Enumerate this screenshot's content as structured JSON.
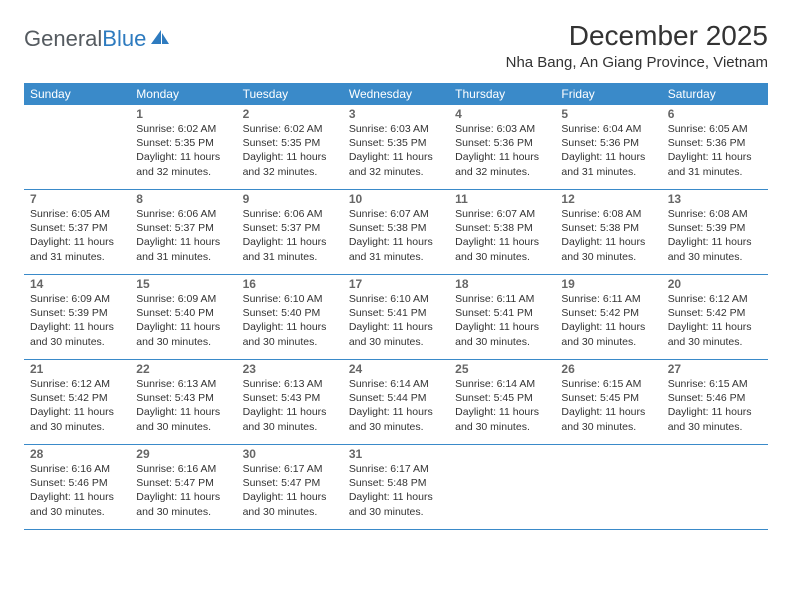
{
  "brand": {
    "part1": "General",
    "part2": "Blue"
  },
  "title": "December 2025",
  "location": "Nha Bang, An Giang Province, Vietnam",
  "colors": {
    "header_bg": "#3a8ac9",
    "header_text": "#ffffff",
    "border": "#3a8ac9",
    "daynum": "#666666",
    "body_text": "#333333",
    "brand_gray": "#555b60",
    "brand_blue": "#2e7bbf",
    "background": "#ffffff"
  },
  "typography": {
    "month_title_size": 28,
    "location_size": 15,
    "day_header_size": 12,
    "daynum_size": 12,
    "info_size": 10.5,
    "logo_size": 22
  },
  "dayHeaders": [
    "Sunday",
    "Monday",
    "Tuesday",
    "Wednesday",
    "Thursday",
    "Friday",
    "Saturday"
  ],
  "weeks": [
    [
      {
        "n": "",
        "sr": "",
        "ss": "",
        "dl": ""
      },
      {
        "n": "1",
        "sr": "Sunrise: 6:02 AM",
        "ss": "Sunset: 5:35 PM",
        "dl": "Daylight: 11 hours and 32 minutes."
      },
      {
        "n": "2",
        "sr": "Sunrise: 6:02 AM",
        "ss": "Sunset: 5:35 PM",
        "dl": "Daylight: 11 hours and 32 minutes."
      },
      {
        "n": "3",
        "sr": "Sunrise: 6:03 AM",
        "ss": "Sunset: 5:35 PM",
        "dl": "Daylight: 11 hours and 32 minutes."
      },
      {
        "n": "4",
        "sr": "Sunrise: 6:03 AM",
        "ss": "Sunset: 5:36 PM",
        "dl": "Daylight: 11 hours and 32 minutes."
      },
      {
        "n": "5",
        "sr": "Sunrise: 6:04 AM",
        "ss": "Sunset: 5:36 PM",
        "dl": "Daylight: 11 hours and 31 minutes."
      },
      {
        "n": "6",
        "sr": "Sunrise: 6:05 AM",
        "ss": "Sunset: 5:36 PM",
        "dl": "Daylight: 11 hours and 31 minutes."
      }
    ],
    [
      {
        "n": "7",
        "sr": "Sunrise: 6:05 AM",
        "ss": "Sunset: 5:37 PM",
        "dl": "Daylight: 11 hours and 31 minutes."
      },
      {
        "n": "8",
        "sr": "Sunrise: 6:06 AM",
        "ss": "Sunset: 5:37 PM",
        "dl": "Daylight: 11 hours and 31 minutes."
      },
      {
        "n": "9",
        "sr": "Sunrise: 6:06 AM",
        "ss": "Sunset: 5:37 PM",
        "dl": "Daylight: 11 hours and 31 minutes."
      },
      {
        "n": "10",
        "sr": "Sunrise: 6:07 AM",
        "ss": "Sunset: 5:38 PM",
        "dl": "Daylight: 11 hours and 31 minutes."
      },
      {
        "n": "11",
        "sr": "Sunrise: 6:07 AM",
        "ss": "Sunset: 5:38 PM",
        "dl": "Daylight: 11 hours and 30 minutes."
      },
      {
        "n": "12",
        "sr": "Sunrise: 6:08 AM",
        "ss": "Sunset: 5:38 PM",
        "dl": "Daylight: 11 hours and 30 minutes."
      },
      {
        "n": "13",
        "sr": "Sunrise: 6:08 AM",
        "ss": "Sunset: 5:39 PM",
        "dl": "Daylight: 11 hours and 30 minutes."
      }
    ],
    [
      {
        "n": "14",
        "sr": "Sunrise: 6:09 AM",
        "ss": "Sunset: 5:39 PM",
        "dl": "Daylight: 11 hours and 30 minutes."
      },
      {
        "n": "15",
        "sr": "Sunrise: 6:09 AM",
        "ss": "Sunset: 5:40 PM",
        "dl": "Daylight: 11 hours and 30 minutes."
      },
      {
        "n": "16",
        "sr": "Sunrise: 6:10 AM",
        "ss": "Sunset: 5:40 PM",
        "dl": "Daylight: 11 hours and 30 minutes."
      },
      {
        "n": "17",
        "sr": "Sunrise: 6:10 AM",
        "ss": "Sunset: 5:41 PM",
        "dl": "Daylight: 11 hours and 30 minutes."
      },
      {
        "n": "18",
        "sr": "Sunrise: 6:11 AM",
        "ss": "Sunset: 5:41 PM",
        "dl": "Daylight: 11 hours and 30 minutes."
      },
      {
        "n": "19",
        "sr": "Sunrise: 6:11 AM",
        "ss": "Sunset: 5:42 PM",
        "dl": "Daylight: 11 hours and 30 minutes."
      },
      {
        "n": "20",
        "sr": "Sunrise: 6:12 AM",
        "ss": "Sunset: 5:42 PM",
        "dl": "Daylight: 11 hours and 30 minutes."
      }
    ],
    [
      {
        "n": "21",
        "sr": "Sunrise: 6:12 AM",
        "ss": "Sunset: 5:42 PM",
        "dl": "Daylight: 11 hours and 30 minutes."
      },
      {
        "n": "22",
        "sr": "Sunrise: 6:13 AM",
        "ss": "Sunset: 5:43 PM",
        "dl": "Daylight: 11 hours and 30 minutes."
      },
      {
        "n": "23",
        "sr": "Sunrise: 6:13 AM",
        "ss": "Sunset: 5:43 PM",
        "dl": "Daylight: 11 hours and 30 minutes."
      },
      {
        "n": "24",
        "sr": "Sunrise: 6:14 AM",
        "ss": "Sunset: 5:44 PM",
        "dl": "Daylight: 11 hours and 30 minutes."
      },
      {
        "n": "25",
        "sr": "Sunrise: 6:14 AM",
        "ss": "Sunset: 5:45 PM",
        "dl": "Daylight: 11 hours and 30 minutes."
      },
      {
        "n": "26",
        "sr": "Sunrise: 6:15 AM",
        "ss": "Sunset: 5:45 PM",
        "dl": "Daylight: 11 hours and 30 minutes."
      },
      {
        "n": "27",
        "sr": "Sunrise: 6:15 AM",
        "ss": "Sunset: 5:46 PM",
        "dl": "Daylight: 11 hours and 30 minutes."
      }
    ],
    [
      {
        "n": "28",
        "sr": "Sunrise: 6:16 AM",
        "ss": "Sunset: 5:46 PM",
        "dl": "Daylight: 11 hours and 30 minutes."
      },
      {
        "n": "29",
        "sr": "Sunrise: 6:16 AM",
        "ss": "Sunset: 5:47 PM",
        "dl": "Daylight: 11 hours and 30 minutes."
      },
      {
        "n": "30",
        "sr": "Sunrise: 6:17 AM",
        "ss": "Sunset: 5:47 PM",
        "dl": "Daylight: 11 hours and 30 minutes."
      },
      {
        "n": "31",
        "sr": "Sunrise: 6:17 AM",
        "ss": "Sunset: 5:48 PM",
        "dl": "Daylight: 11 hours and 30 minutes."
      },
      {
        "n": "",
        "sr": "",
        "ss": "",
        "dl": ""
      },
      {
        "n": "",
        "sr": "",
        "ss": "",
        "dl": ""
      },
      {
        "n": "",
        "sr": "",
        "ss": "",
        "dl": ""
      }
    ]
  ]
}
